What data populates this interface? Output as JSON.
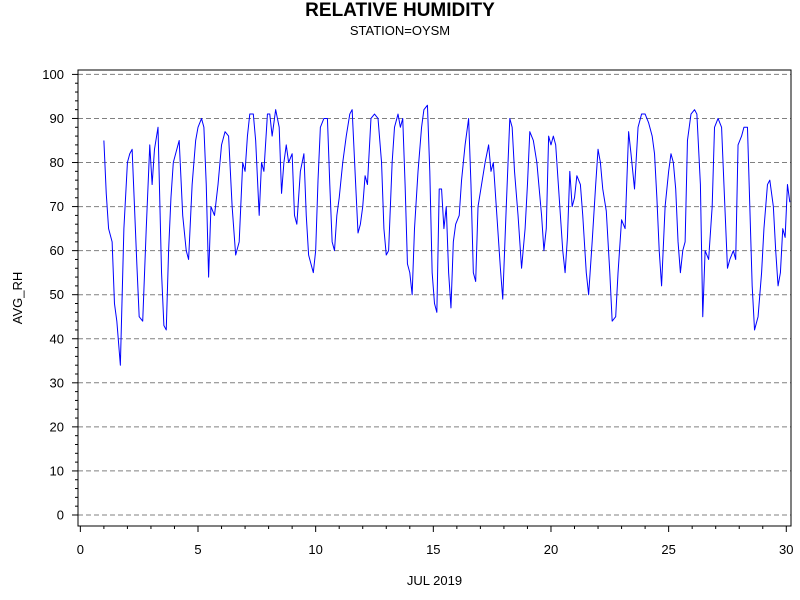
{
  "chart_data": {
    "type": "line",
    "title": "RELATIVE HUMIDITY",
    "subtitle": "STATION=OYSM",
    "xlabel": "JUL 2019",
    "ylabel": "AVG_RH",
    "xlim": [
      -0.1,
      30.2
    ],
    "ylim": [
      -2.5,
      101
    ],
    "x_ticks": [
      0,
      5,
      10,
      15,
      20,
      25,
      30
    ],
    "y_ticks": [
      0,
      10,
      20,
      30,
      40,
      50,
      60,
      70,
      80,
      90,
      100
    ],
    "grid": "horizontal dashed at y ticks",
    "series": [
      {
        "color": "#0000ff",
        "points": [
          [
            1.0,
            85
          ],
          [
            1.1,
            73
          ],
          [
            1.2,
            65
          ],
          [
            1.35,
            62
          ],
          [
            1.45,
            48
          ],
          [
            1.55,
            44
          ],
          [
            1.7,
            34
          ],
          [
            1.85,
            65
          ],
          [
            2.0,
            80
          ],
          [
            2.1,
            82
          ],
          [
            2.2,
            83
          ],
          [
            2.3,
            70
          ],
          [
            2.4,
            57
          ],
          [
            2.5,
            45
          ],
          [
            2.65,
            44
          ],
          [
            2.8,
            65
          ],
          [
            2.95,
            84
          ],
          [
            3.05,
            75
          ],
          [
            3.15,
            83
          ],
          [
            3.3,
            88
          ],
          [
            3.45,
            55
          ],
          [
            3.55,
            43
          ],
          [
            3.65,
            42
          ],
          [
            3.75,
            60
          ],
          [
            3.85,
            72
          ],
          [
            3.95,
            80
          ],
          [
            4.1,
            83
          ],
          [
            4.2,
            85
          ],
          [
            4.35,
            68
          ],
          [
            4.5,
            60
          ],
          [
            4.6,
            58
          ],
          [
            4.75,
            75
          ],
          [
            4.9,
            85
          ],
          [
            5.0,
            88
          ],
          [
            5.15,
            90
          ],
          [
            5.25,
            88
          ],
          [
            5.35,
            75
          ],
          [
            5.45,
            54
          ],
          [
            5.55,
            70
          ],
          [
            5.7,
            68
          ],
          [
            5.85,
            75
          ],
          [
            6.0,
            84
          ],
          [
            6.15,
            87
          ],
          [
            6.3,
            86
          ],
          [
            6.45,
            70
          ],
          [
            6.6,
            59
          ],
          [
            6.75,
            62
          ],
          [
            6.9,
            80
          ],
          [
            7.0,
            78
          ],
          [
            7.1,
            86
          ],
          [
            7.2,
            91
          ],
          [
            7.35,
            91
          ],
          [
            7.45,
            85
          ],
          [
            7.6,
            68
          ],
          [
            7.7,
            80
          ],
          [
            7.8,
            78
          ],
          [
            7.95,
            91
          ],
          [
            8.05,
            91
          ],
          [
            8.15,
            86
          ],
          [
            8.3,
            92
          ],
          [
            8.45,
            88
          ],
          [
            8.55,
            73
          ],
          [
            8.65,
            80
          ],
          [
            8.75,
            84
          ],
          [
            8.85,
            80
          ],
          [
            9.0,
            82
          ],
          [
            9.1,
            68
          ],
          [
            9.2,
            66
          ],
          [
            9.35,
            78
          ],
          [
            9.5,
            82
          ],
          [
            9.6,
            68
          ],
          [
            9.7,
            59
          ],
          [
            9.8,
            57
          ],
          [
            9.9,
            55
          ],
          [
            10.0,
            60
          ],
          [
            10.1,
            76
          ],
          [
            10.2,
            88
          ],
          [
            10.35,
            90
          ],
          [
            10.5,
            90
          ],
          [
            10.6,
            75
          ],
          [
            10.7,
            62
          ],
          [
            10.8,
            60
          ],
          [
            10.9,
            68
          ],
          [
            11.0,
            72
          ],
          [
            11.15,
            80
          ],
          [
            11.3,
            86
          ],
          [
            11.45,
            91
          ],
          [
            11.55,
            92
          ],
          [
            11.7,
            75
          ],
          [
            11.8,
            64
          ],
          [
            11.9,
            66
          ],
          [
            12.0,
            70
          ],
          [
            12.1,
            77
          ],
          [
            12.2,
            75
          ],
          [
            12.35,
            90
          ],
          [
            12.5,
            91
          ],
          [
            12.65,
            90
          ],
          [
            12.8,
            80
          ],
          [
            12.9,
            65
          ],
          [
            13.0,
            59
          ],
          [
            13.1,
            60
          ],
          [
            13.25,
            80
          ],
          [
            13.35,
            88
          ],
          [
            13.5,
            91
          ],
          [
            13.6,
            88
          ],
          [
            13.7,
            90
          ],
          [
            13.8,
            75
          ],
          [
            13.9,
            57
          ],
          [
            14.0,
            55
          ],
          [
            14.1,
            50
          ],
          [
            14.2,
            65
          ],
          [
            14.35,
            78
          ],
          [
            14.5,
            88
          ],
          [
            14.6,
            92
          ],
          [
            14.75,
            93
          ],
          [
            14.85,
            78
          ],
          [
            14.95,
            55
          ],
          [
            15.05,
            48
          ],
          [
            15.15,
            46
          ],
          [
            15.25,
            74
          ],
          [
            15.35,
            74
          ],
          [
            15.45,
            65
          ],
          [
            15.55,
            70
          ],
          [
            15.65,
            55
          ],
          [
            15.75,
            47
          ],
          [
            15.85,
            62
          ],
          [
            15.95,
            66
          ],
          [
            16.1,
            68
          ],
          [
            16.2,
            76
          ],
          [
            16.35,
            84
          ],
          [
            16.5,
            90
          ],
          [
            16.6,
            75
          ],
          [
            16.7,
            55
          ],
          [
            16.8,
            53
          ],
          [
            16.9,
            70
          ],
          [
            17.05,
            75
          ],
          [
            17.2,
            80
          ],
          [
            17.35,
            84
          ],
          [
            17.45,
            78
          ],
          [
            17.55,
            80
          ],
          [
            17.7,
            68
          ],
          [
            17.85,
            56
          ],
          [
            17.95,
            49
          ],
          [
            18.1,
            70
          ],
          [
            18.25,
            90
          ],
          [
            18.35,
            88
          ],
          [
            18.45,
            78
          ],
          [
            18.6,
            68
          ],
          [
            18.75,
            56
          ],
          [
            18.9,
            65
          ],
          [
            19.0,
            75
          ],
          [
            19.1,
            87
          ],
          [
            19.25,
            85
          ],
          [
            19.4,
            80
          ],
          [
            19.5,
            74
          ],
          [
            19.6,
            68
          ],
          [
            19.7,
            60
          ],
          [
            19.8,
            65
          ],
          [
            19.9,
            86
          ],
          [
            20.0,
            84
          ],
          [
            20.1,
            86
          ],
          [
            20.2,
            84
          ],
          [
            20.35,
            72
          ],
          [
            20.5,
            60
          ],
          [
            20.6,
            55
          ],
          [
            20.7,
            63
          ],
          [
            20.8,
            78
          ],
          [
            20.9,
            70
          ],
          [
            21.0,
            72
          ],
          [
            21.1,
            77
          ],
          [
            21.25,
            75
          ],
          [
            21.35,
            68
          ],
          [
            21.5,
            55
          ],
          [
            21.6,
            50
          ],
          [
            21.75,
            62
          ],
          [
            21.9,
            75
          ],
          [
            22.0,
            83
          ],
          [
            22.1,
            80
          ],
          [
            22.2,
            74
          ],
          [
            22.35,
            69
          ],
          [
            22.5,
            55
          ],
          [
            22.6,
            44
          ],
          [
            22.75,
            45
          ],
          [
            22.85,
            55
          ],
          [
            23.0,
            67
          ],
          [
            23.15,
            65
          ],
          [
            23.3,
            87
          ],
          [
            23.4,
            82
          ],
          [
            23.55,
            74
          ],
          [
            23.7,
            88
          ],
          [
            23.85,
            91
          ],
          [
            24.0,
            91
          ],
          [
            24.15,
            89
          ],
          [
            24.3,
            86
          ],
          [
            24.4,
            82
          ],
          [
            24.5,
            72
          ],
          [
            24.6,
            60
          ],
          [
            24.7,
            52
          ],
          [
            24.85,
            70
          ],
          [
            25.0,
            78
          ],
          [
            25.1,
            82
          ],
          [
            25.2,
            80
          ],
          [
            25.3,
            74
          ],
          [
            25.4,
            62
          ],
          [
            25.5,
            55
          ],
          [
            25.6,
            60
          ],
          [
            25.7,
            62
          ],
          [
            25.8,
            85
          ],
          [
            25.95,
            91
          ],
          [
            26.1,
            92
          ],
          [
            26.2,
            91
          ],
          [
            26.35,
            75
          ],
          [
            26.45,
            45
          ],
          [
            26.55,
            60
          ],
          [
            26.7,
            58
          ],
          [
            26.85,
            70
          ],
          [
            26.95,
            88
          ],
          [
            27.1,
            90
          ],
          [
            27.25,
            88
          ],
          [
            27.35,
            75
          ],
          [
            27.5,
            56
          ],
          [
            27.6,
            58
          ],
          [
            27.75,
            60
          ],
          [
            27.85,
            58
          ],
          [
            27.95,
            84
          ],
          [
            28.1,
            86
          ],
          [
            28.2,
            88
          ],
          [
            28.35,
            88
          ],
          [
            28.45,
            70
          ],
          [
            28.55,
            52
          ],
          [
            28.65,
            42
          ],
          [
            28.8,
            45
          ],
          [
            28.95,
            55
          ],
          [
            29.05,
            65
          ],
          [
            29.2,
            75
          ],
          [
            29.3,
            76
          ],
          [
            29.45,
            70
          ],
          [
            29.55,
            60
          ],
          [
            29.65,
            52
          ],
          [
            29.75,
            55
          ],
          [
            29.85,
            65
          ],
          [
            29.95,
            63
          ],
          [
            30.05,
            75
          ],
          [
            30.15,
            71
          ]
        ]
      }
    ]
  }
}
